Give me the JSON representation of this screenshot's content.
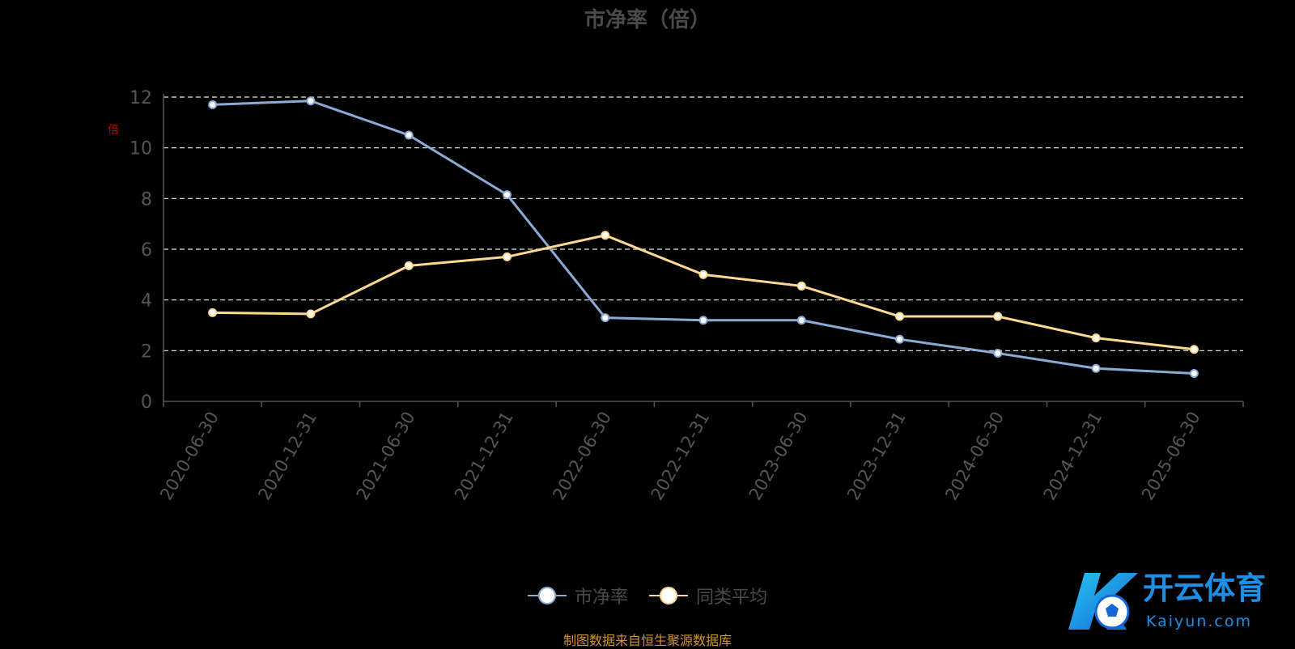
{
  "chart_data": {
    "type": "line",
    "title": "市净率（倍）",
    "ylabel": "倍",
    "ylim": [
      0,
      12
    ],
    "yticks": [
      0,
      2,
      4,
      6,
      8,
      10,
      12
    ],
    "grid": true,
    "legend_position": "bottom",
    "categories": [
      "2020-06-30",
      "2020-12-31",
      "2021-06-30",
      "2021-12-31",
      "2022-06-30",
      "2022-12-31",
      "2023-06-30",
      "2023-12-31",
      "2024-06-30",
      "2024-12-31",
      "2025-06-30"
    ],
    "series": [
      {
        "name": "市净率",
        "color": "#8caad6",
        "values": [
          11.7,
          11.85,
          10.5,
          8.15,
          3.3,
          3.2,
          3.2,
          2.45,
          1.9,
          1.3,
          1.1
        ]
      },
      {
        "name": "同类平均",
        "color": "#ffd990",
        "values": [
          3.5,
          3.45,
          5.35,
          5.7,
          6.55,
          5.0,
          4.55,
          3.35,
          3.35,
          2.5,
          2.05
        ]
      }
    ]
  },
  "source_text": "制图数据来自恒生聚源数据库",
  "watermark": {
    "name": "开云体育",
    "sub": "Kaiyun.com",
    "color": "#1e8fe6"
  }
}
